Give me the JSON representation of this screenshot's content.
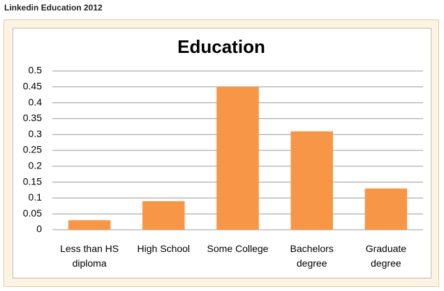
{
  "page_title": "Linkedin Education 2012",
  "chart_data": {
    "type": "bar",
    "title": "Education",
    "categories": [
      "Less than HS diploma",
      "High School",
      "Some College",
      "Bachelors degree",
      "Graduate degree"
    ],
    "values": [
      0.03,
      0.09,
      0.45,
      0.31,
      0.13
    ],
    "color": "#f79646",
    "ylim": [
      0,
      0.5
    ],
    "yticks": [
      0,
      0.05,
      0.1,
      0.15,
      0.2,
      0.25,
      0.3,
      0.35,
      0.4,
      0.45,
      0.5
    ],
    "grid": true
  }
}
